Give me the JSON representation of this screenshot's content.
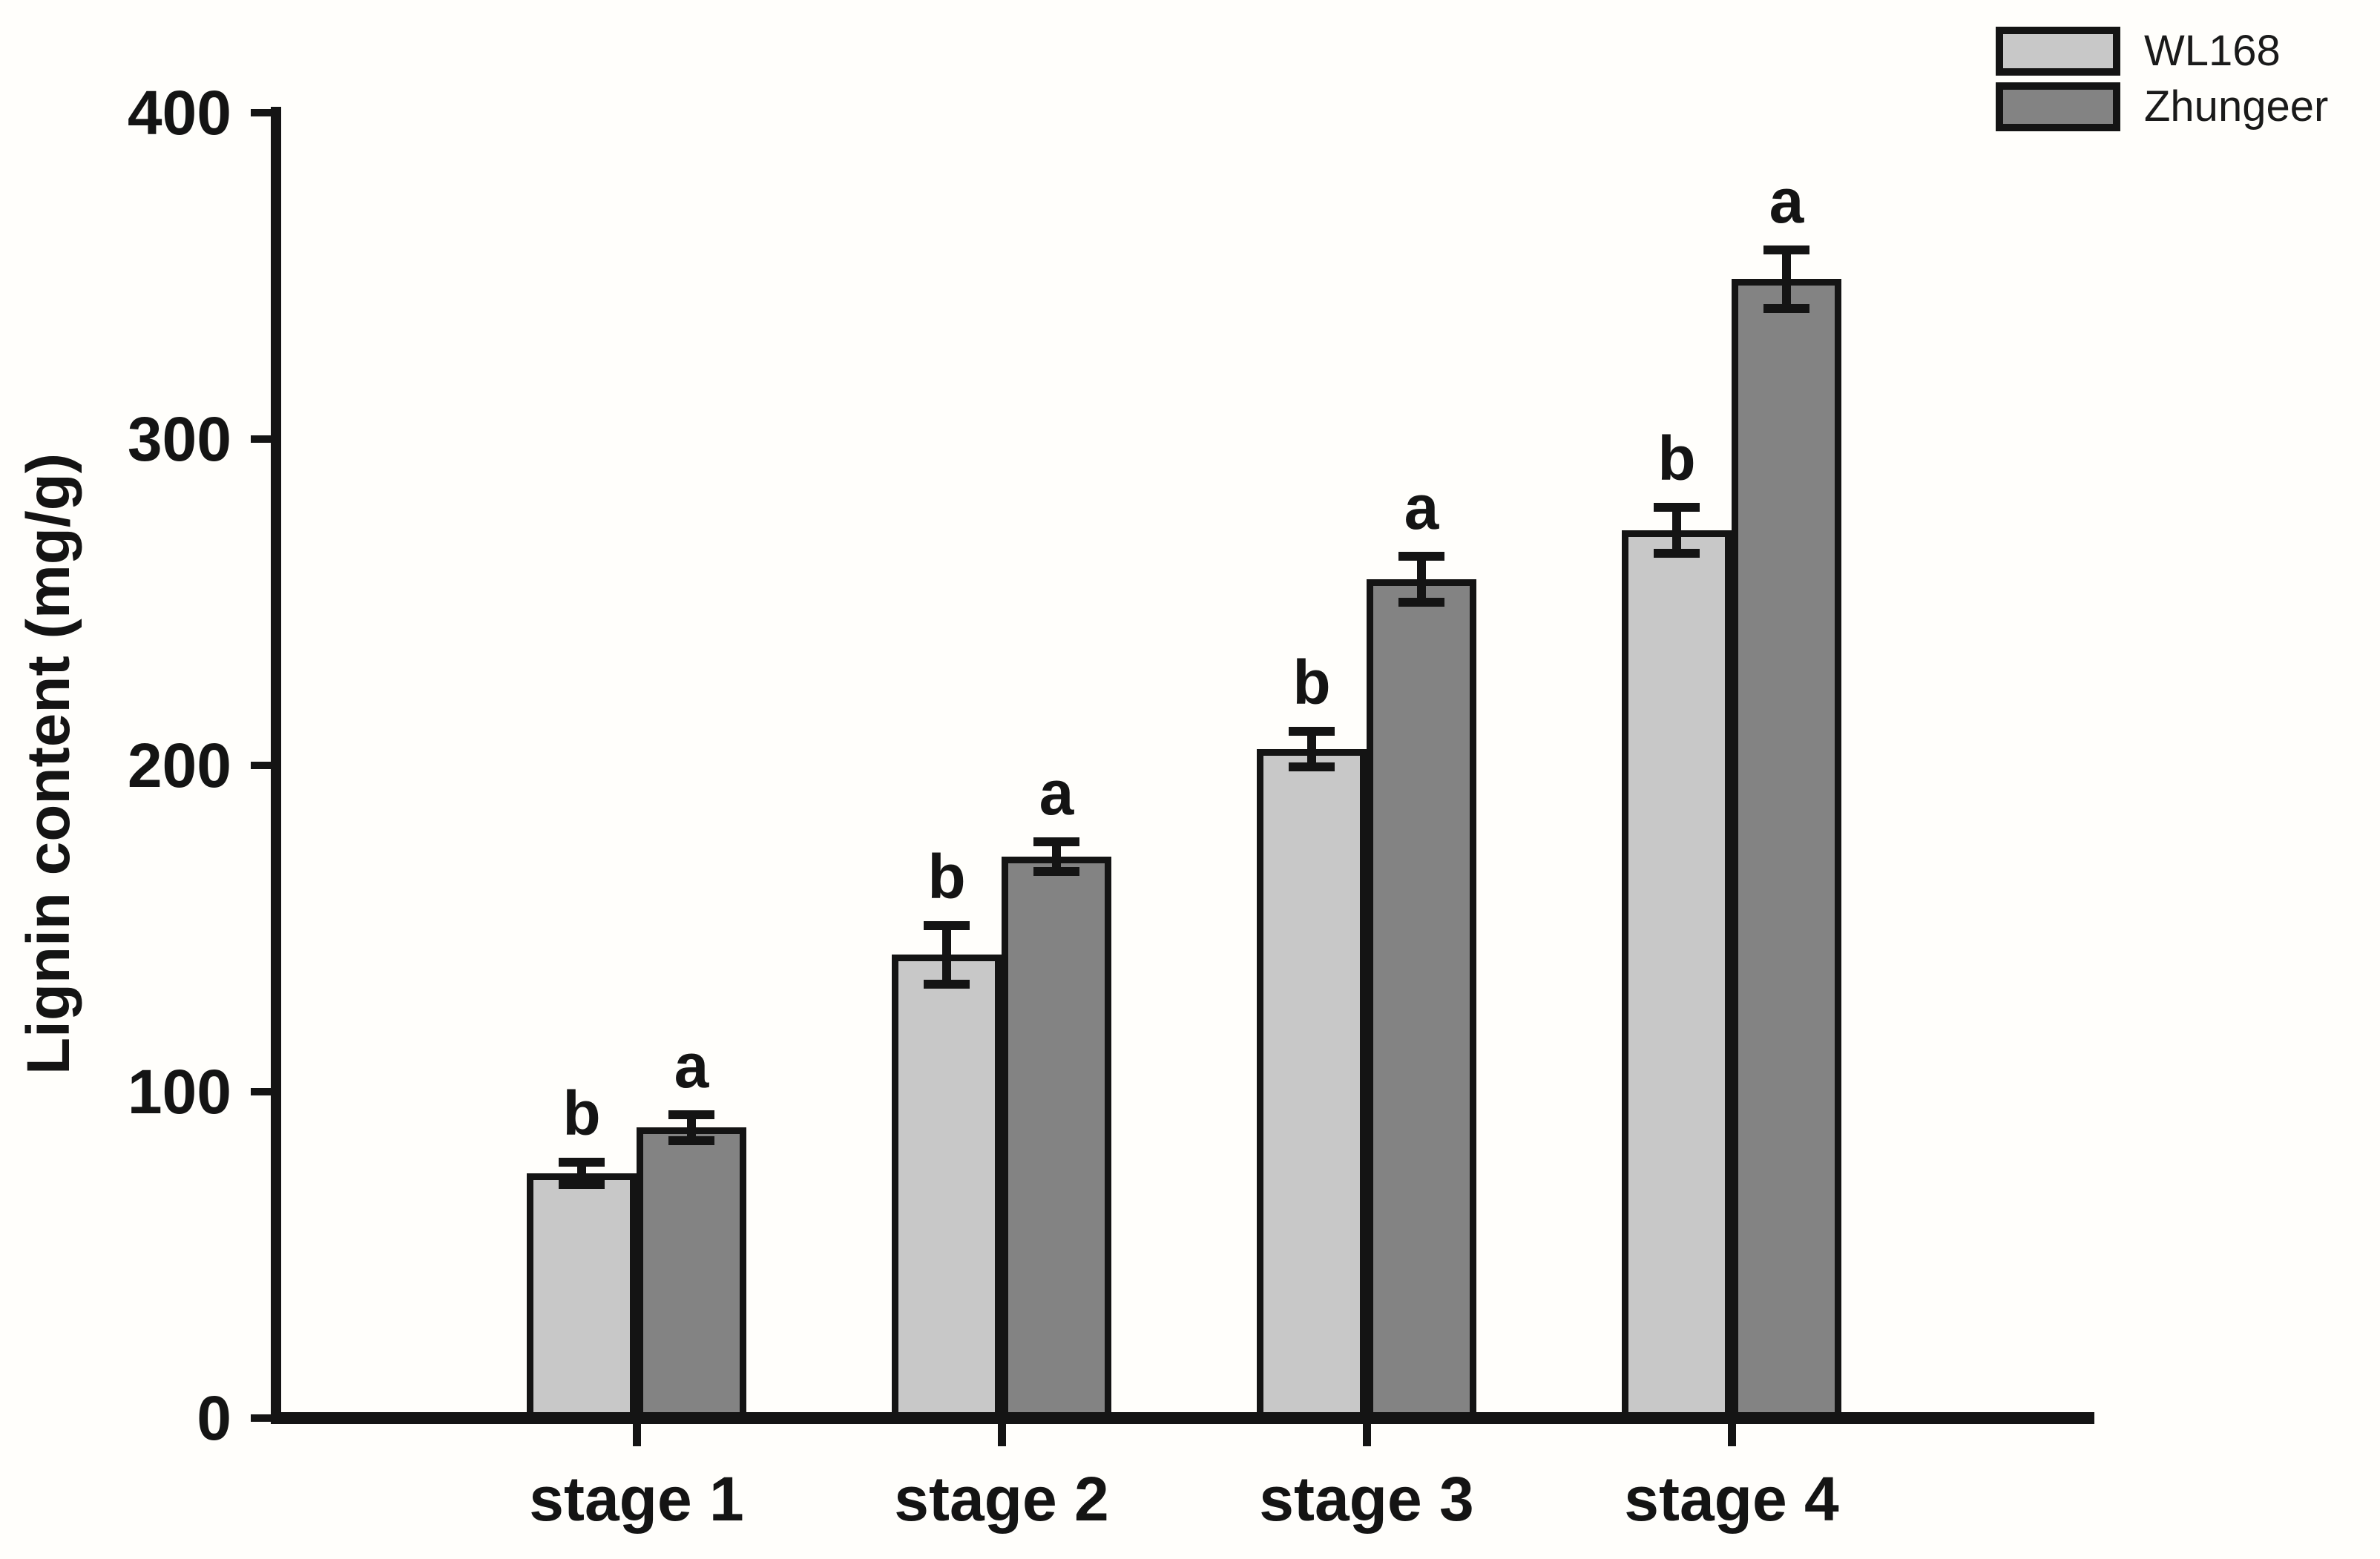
{
  "chart_data": {
    "type": "bar",
    "title": "",
    "xlabel": "",
    "ylabel": "Lignin content (mg/g)",
    "ylim": [
      0,
      400
    ],
    "yticks": [
      0,
      100,
      200,
      300,
      400
    ],
    "grid": false,
    "legend_position": "top-right",
    "categories": [
      "stage 1",
      "stage 2",
      "stage 3",
      "stage 4"
    ],
    "series": [
      {
        "name": "WL168",
        "color": "#c8c8c8",
        "values": [
          75,
          142,
          205,
          272
        ],
        "errors": [
          3.5,
          9,
          5.5,
          7
        ],
        "sig_letters": [
          "b",
          "b",
          "b",
          "b"
        ]
      },
      {
        "name": "Zhungeer",
        "color": "#838383",
        "values": [
          89,
          172,
          257,
          349
        ],
        "errors": [
          4,
          4.5,
          7,
          9
        ],
        "sig_letters": [
          "a",
          "a",
          "a",
          "a"
        ]
      }
    ]
  },
  "colors": {
    "axis": "#141414",
    "background": "#fffefb",
    "bar_outline": "#141414"
  }
}
